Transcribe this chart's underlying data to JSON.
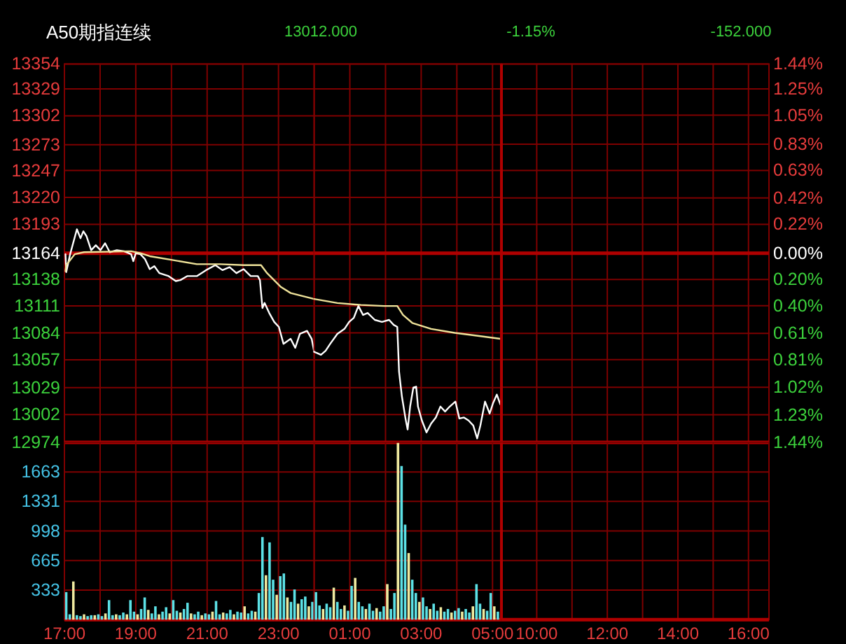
{
  "chart_data": [
    {
      "type": "line",
      "title": "A50期指连续",
      "annotations": [
        "13012.000",
        "-1.15%",
        "-152.000"
      ],
      "series": [
        {
          "color": "#ffffff",
          "x": [
            17.03,
            17.05,
            17.16,
            17.35,
            17.45,
            17.53,
            17.62,
            17.75,
            17.88,
            18.01,
            18.14,
            18.27,
            18.47,
            18.67,
            18.87,
            18.93,
            19.0,
            19.13,
            19.26,
            19.39,
            19.52,
            19.66,
            19.92,
            20.12,
            20.25,
            20.44,
            20.71,
            20.97,
            21.23,
            21.43,
            21.63,
            21.82,
            22.02,
            22.22,
            22.42,
            22.48,
            22.55,
            22.61,
            22.74,
            22.88,
            23.01,
            23.14,
            23.34,
            23.47,
            23.6,
            23.8,
            23.93,
            24
          ],
          "values": [
            13163,
            13145,
            13163,
            13188,
            13179,
            13186,
            13181,
            13167,
            13172,
            13167,
            13174,
            13165,
            13167,
            13166,
            13163,
            13156,
            13164,
            13163,
            13158,
            13148,
            13151,
            13144,
            13141,
            13136,
            13137,
            13141,
            13141,
            13147,
            13152,
            13147,
            13150,
            13144,
            13148,
            13141,
            13141,
            13137,
            13109,
            13114,
            13104,
            13095,
            13090,
            13073,
            13078,
            13069,
            13083,
            13086,
            13078,
            13065
          ]
        },
        {
          "color": "#efe39a",
          "x": [
            17.03,
            17.05,
            17.29,
            17.55,
            18.87,
            19.13,
            19.39,
            20.05,
            20.71,
            21.36,
            22.02,
            22.51,
            22.68,
            23.07,
            23.34,
            24
          ],
          "values": [
            13146,
            13152,
            13163,
            13165,
            13166,
            13164,
            13161,
            13157,
            13153,
            13153,
            13152,
            13152,
            13144,
            13130,
            13124,
            13118
          ]
        }
      ],
      "xlim": [
        17,
        24
      ],
      "xticks": [
        17,
        18,
        19,
        20,
        21,
        22,
        23
      ],
      "ylim": [
        12974,
        13354
      ],
      "yticks": [
        13354,
        13329,
        13302,
        13273,
        13247,
        13220,
        13193,
        13164,
        13138,
        13111,
        13084,
        13057,
        13029,
        13002,
        12974
      ],
      "ref_lines": [
        {
          "axis": "y",
          "value": 13164
        }
      ],
      "grid": true,
      "tick_labels": "y"
    },
    {
      "type": "line",
      "series": [
        {
          "color": "#ffffff",
          "x": [
            0,
            0.06,
            0.19,
            0.32,
            0.45,
            0.65,
            0.85,
            0.98,
            1.11,
            1.24,
            1.37,
            1.5,
            1.7,
            1.9,
            2.1,
            2.23,
            2.33,
            2.38,
            2.46,
            2.56,
            2.62,
            2.69,
            2.78,
            2.86,
            2.91,
            3.02,
            3.15,
            3.28,
            3.41,
            3.54,
            3.67,
            3.8,
            3.96,
            4.07,
            4.2,
            4.33,
            4.46,
            4.57,
            4.66,
            4.79,
            4.92,
            5.01,
            5.12,
            5.22
          ],
          "values": [
            13065,
            13064,
            13062,
            13066,
            13073,
            13083,
            13088,
            13095,
            13099,
            13111,
            13102,
            13104,
            13097,
            13095,
            13097,
            13092,
            13090,
            13045,
            13020,
            12998,
            12987,
            13010,
            13029,
            13030,
            13010,
            12996,
            12984,
            12993,
            12999,
            13010,
            13005,
            13010,
            13015,
            12998,
            12999,
            12996,
            12991,
            12978,
            12991,
            13015,
            13003,
            13013,
            13022,
            13012
          ]
        },
        {
          "color": "#efe39a",
          "x": [
            0,
            0.65,
            1.31,
            1.96,
            2.33,
            2.49,
            2.75,
            3.28,
            3.94,
            4.59,
            5.22
          ],
          "values": [
            13118,
            13114,
            13112,
            13111,
            13111,
            13102,
            13094,
            13088,
            13084,
            13081,
            13078
          ]
        }
      ],
      "xlim": [
        0,
        5.25
      ],
      "xticks": [
        1,
        2,
        3,
        4,
        5
      ],
      "ylim": [
        12974,
        13354
      ],
      "yticks": [
        13354,
        13329,
        13302,
        13273,
        13247,
        13220,
        13193,
        13164,
        13138,
        13111,
        13084,
        13057,
        13029,
        13002,
        12974
      ],
      "ref_lines": [
        {
          "axis": "y",
          "value": 13164
        }
      ],
      "grid": true,
      "tick_labels": false
    },
    {
      "type": "line",
      "xlim": [
        9,
        16.58
      ],
      "xticks": [
        10,
        11,
        12,
        13,
        14,
        15,
        16
      ],
      "y2lim": [
        -1.44,
        1.44
      ],
      "y2ticks": [
        {
          "value": 1.44,
          "label": "1.44%"
        },
        {
          "value": 1.25,
          "label": "1.25%"
        },
        {
          "value": 1.05,
          "label": "1.05%"
        },
        {
          "value": 0.83,
          "label": "0.83%"
        },
        {
          "value": 0.63,
          "label": "0.63%"
        },
        {
          "value": 0.42,
          "label": "0.42%"
        },
        {
          "value": 0.22,
          "label": "0.22%"
        },
        {
          "value": 0,
          "label": "0.00%"
        },
        {
          "value": -0.2,
          "label": "0.20%"
        },
        {
          "value": -0.4,
          "label": "0.40%"
        },
        {
          "value": -0.61,
          "label": "0.61%"
        },
        {
          "value": -0.81,
          "label": "0.81%"
        },
        {
          "value": -1.02,
          "label": "1.02%"
        },
        {
          "value": -1.23,
          "label": "1.23%"
        },
        {
          "value": -1.44,
          "label": "1.44%"
        }
      ],
      "ref_lines": [
        {
          "axis": "y2",
          "value": 0
        }
      ],
      "grid": true,
      "tick_labels": "y"
    },
    {
      "type": "bar",
      "x": [
        17.05,
        17.15,
        17.25,
        17.35,
        17.45,
        17.55,
        17.65,
        17.75,
        17.85,
        17.95,
        18.05,
        18.15,
        18.25,
        18.35,
        18.45,
        18.55,
        18.65,
        18.75,
        18.85,
        18.95,
        19.05,
        19.15,
        19.25,
        19.35,
        19.45,
        19.55,
        19.65,
        19.75,
        19.85,
        19.95,
        20.05,
        20.15,
        20.25,
        20.35,
        20.45,
        20.55,
        20.65,
        20.75,
        20.85,
        20.95,
        21.05,
        21.15,
        21.25,
        21.35,
        21.45,
        21.55,
        21.65,
        21.75,
        21.85,
        21.95,
        22.05,
        22.15,
        22.25,
        22.35,
        22.45,
        22.55,
        22.65,
        22.75,
        22.85,
        22.95,
        23.05,
        23.15,
        23.25,
        23.35,
        23.45,
        23.55,
        23.65,
        23.75,
        23.85,
        23.95
      ],
      "values": [
        310,
        60,
        430,
        50,
        40,
        60,
        40,
        50,
        50,
        60,
        40,
        70,
        220,
        50,
        60,
        50,
        80,
        60,
        220,
        90,
        60,
        120,
        250,
        110,
        70,
        150,
        60,
        90,
        140,
        70,
        220,
        100,
        80,
        120,
        190,
        70,
        60,
        90,
        50,
        70,
        60,
        90,
        210,
        60,
        80,
        70,
        110,
        60,
        90,
        80,
        150,
        70,
        100,
        90,
        300,
        930,
        500,
        870,
        450,
        280,
        490,
        520,
        250,
        200,
        340,
        180,
        230,
        260,
        150,
        200
      ],
      "colors": [
        "#5ce1e6",
        "#5ce1e6",
        "#f0eaa0",
        "#5ce1e6",
        "#5ce1e6",
        "#f0eaa0",
        "#5ce1e6",
        "#5ce1e6",
        "#f0eaa0",
        "#5ce1e6",
        "#5ce1e6",
        "#f0eaa0",
        "#5ce1e6",
        "#5ce1e6",
        "#f0eaa0",
        "#5ce1e6",
        "#5ce1e6",
        "#f0eaa0",
        "#5ce1e6",
        "#5ce1e6",
        "#f0eaa0",
        "#5ce1e6",
        "#5ce1e6",
        "#f0eaa0",
        "#5ce1e6",
        "#5ce1e6",
        "#f0eaa0",
        "#5ce1e6",
        "#5ce1e6",
        "#f0eaa0",
        "#5ce1e6",
        "#5ce1e6",
        "#f0eaa0",
        "#5ce1e6",
        "#5ce1e6",
        "#f0eaa0",
        "#5ce1e6",
        "#5ce1e6",
        "#f0eaa0",
        "#5ce1e6",
        "#5ce1e6",
        "#f0eaa0",
        "#5ce1e6",
        "#5ce1e6",
        "#f0eaa0",
        "#5ce1e6",
        "#5ce1e6",
        "#f0eaa0",
        "#5ce1e6",
        "#5ce1e6",
        "#f0eaa0",
        "#5ce1e6",
        "#5ce1e6",
        "#f0eaa0",
        "#5ce1e6",
        "#5ce1e6",
        "#f0eaa0",
        "#5ce1e6",
        "#5ce1e6",
        "#f0eaa0",
        "#5ce1e6",
        "#5ce1e6",
        "#f0eaa0",
        "#5ce1e6",
        "#5ce1e6",
        "#f0eaa0",
        "#5ce1e6",
        "#5ce1e6",
        "#f0eaa0",
        "#5ce1e6"
      ],
      "xlim": [
        17,
        24
      ],
      "xticks": [
        {
          "value": 17,
          "label": "17:00"
        },
        {
          "value": 18,
          "label": null
        },
        {
          "value": 19,
          "label": "19:00"
        },
        {
          "value": 20,
          "label": null
        },
        {
          "value": 21,
          "label": "21:00"
        },
        {
          "value": 22,
          "label": null
        },
        {
          "value": 23,
          "label": "23:00"
        }
      ],
      "ylim": [
        0,
        1996
      ],
      "yticks": [
        333,
        665,
        998,
        1331,
        1663
      ],
      "grid": true
    },
    {
      "type": "bar",
      "x": [
        0.05,
        0.15,
        0.25,
        0.35,
        0.45,
        0.55,
        0.65,
        0.75,
        0.85,
        0.95,
        1.05,
        1.15,
        1.25,
        1.35,
        1.45,
        1.55,
        1.65,
        1.75,
        1.85,
        1.95,
        2.05,
        2.15,
        2.25,
        2.35,
        2.45,
        2.55,
        2.65,
        2.75,
        2.85,
        2.95,
        3.05,
        3.15,
        3.25,
        3.35,
        3.45,
        3.55,
        3.65,
        3.75,
        3.85,
        3.95,
        4.05,
        4.15,
        4.25,
        4.35,
        4.45,
        4.55,
        4.65,
        4.75,
        4.85,
        4.95,
        5.05,
        5.15
      ],
      "values": [
        310,
        160,
        120,
        180,
        140,
        360,
        200,
        120,
        160,
        100,
        380,
        470,
        200,
        150,
        120,
        180,
        100,
        130,
        90,
        150,
        400,
        120,
        300,
        1990,
        1730,
        1070,
        750,
        450,
        300,
        200,
        250,
        150,
        120,
        180,
        100,
        140,
        90,
        120,
        80,
        100,
        130,
        90,
        120,
        80,
        150,
        400,
        180,
        120,
        100,
        300,
        150,
        90
      ],
      "colors": [
        "#5ce1e6",
        "#5ce1e6",
        "#f0eaa0",
        "#5ce1e6",
        "#5ce1e6",
        "#f0eaa0",
        "#5ce1e6",
        "#5ce1e6",
        "#f0eaa0",
        "#5ce1e6",
        "#5ce1e6",
        "#f0eaa0",
        "#5ce1e6",
        "#5ce1e6",
        "#f0eaa0",
        "#5ce1e6",
        "#5ce1e6",
        "#f0eaa0",
        "#5ce1e6",
        "#5ce1e6",
        "#f0eaa0",
        "#5ce1e6",
        "#5ce1e6",
        "#f0eaa0",
        "#5ce1e6",
        "#5ce1e6",
        "#f0eaa0",
        "#5ce1e6",
        "#5ce1e6",
        "#f0eaa0",
        "#5ce1e6",
        "#5ce1e6",
        "#f0eaa0",
        "#5ce1e6",
        "#5ce1e6",
        "#f0eaa0",
        "#5ce1e6",
        "#5ce1e6",
        "#f0eaa0",
        "#5ce1e6",
        "#5ce1e6",
        "#f0eaa0",
        "#5ce1e6",
        "#5ce1e6",
        "#f0eaa0",
        "#5ce1e6",
        "#5ce1e6",
        "#f0eaa0",
        "#5ce1e6",
        "#5ce1e6",
        "#f0eaa0",
        "#5ce1e6"
      ],
      "xlim": [
        0,
        5.25
      ],
      "xticks": [
        {
          "value": 1,
          "label": "01:00"
        },
        {
          "value": 2,
          "label": null
        },
        {
          "value": 3,
          "label": "03:00"
        },
        {
          "value": 4,
          "label": null
        },
        {
          "value": 5,
          "label": "05:00"
        }
      ],
      "ylim": [
        0,
        1996
      ],
      "yticks": [
        333,
        665,
        998,
        1331,
        1663
      ],
      "grid": true,
      "tick_labels": "x"
    },
    {
      "type": "bar",
      "xlim": [
        9,
        16.58
      ],
      "xticks": [
        {
          "value": 10,
          "label": "10:00"
        },
        {
          "value": 11,
          "label": null
        },
        {
          "value": 12,
          "label": "12:00"
        },
        {
          "value": 13,
          "label": null
        },
        {
          "value": 14,
          "label": "14:00"
        },
        {
          "value": 15,
          "label": null
        },
        {
          "value": 16,
          "label": "16:00"
        }
      ],
      "ylim": [
        0,
        1996
      ],
      "yticks": [
        333,
        665,
        998,
        1331,
        1663
      ],
      "grid": true,
      "tick_labels": "x"
    }
  ]
}
